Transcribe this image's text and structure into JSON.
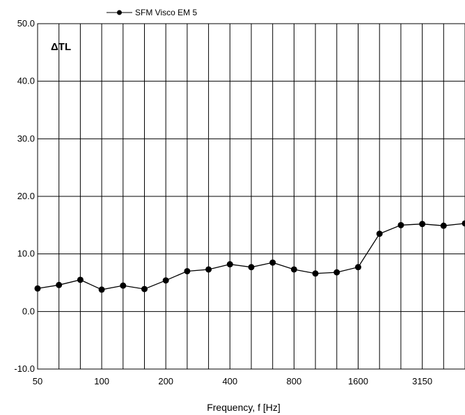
{
  "chart_data": {
    "type": "line",
    "title": "",
    "xlabel": "Frequency, f [Hz]",
    "ylabel": "",
    "annotation": "ΔTL",
    "ylim": [
      -10,
      50
    ],
    "ytick_labels": [
      "-10.0",
      "0.0",
      "10.0",
      "20.0",
      "30.0",
      "40.0",
      "50.0"
    ],
    "x": [
      50,
      63,
      80,
      100,
      125,
      160,
      200,
      250,
      315,
      400,
      500,
      630,
      800,
      1000,
      1250,
      1600,
      2000,
      2500,
      3150,
      4000,
      5000
    ],
    "xtick_labels": [
      "50",
      "100",
      "200",
      "400",
      "800",
      "1600",
      "3150"
    ],
    "legend": {
      "position": "top"
    },
    "grid": true,
    "series": [
      {
        "name": "SFM Visco EM 5",
        "color": "#000000",
        "marker": "circle",
        "values": [
          4.0,
          4.6,
          5.5,
          3.8,
          4.5,
          3.9,
          5.4,
          7.0,
          7.3,
          8.2,
          7.7,
          8.5,
          7.3,
          6.6,
          6.8,
          7.7,
          13.5,
          15.0,
          15.2,
          14.9,
          15.3
        ]
      }
    ]
  }
}
